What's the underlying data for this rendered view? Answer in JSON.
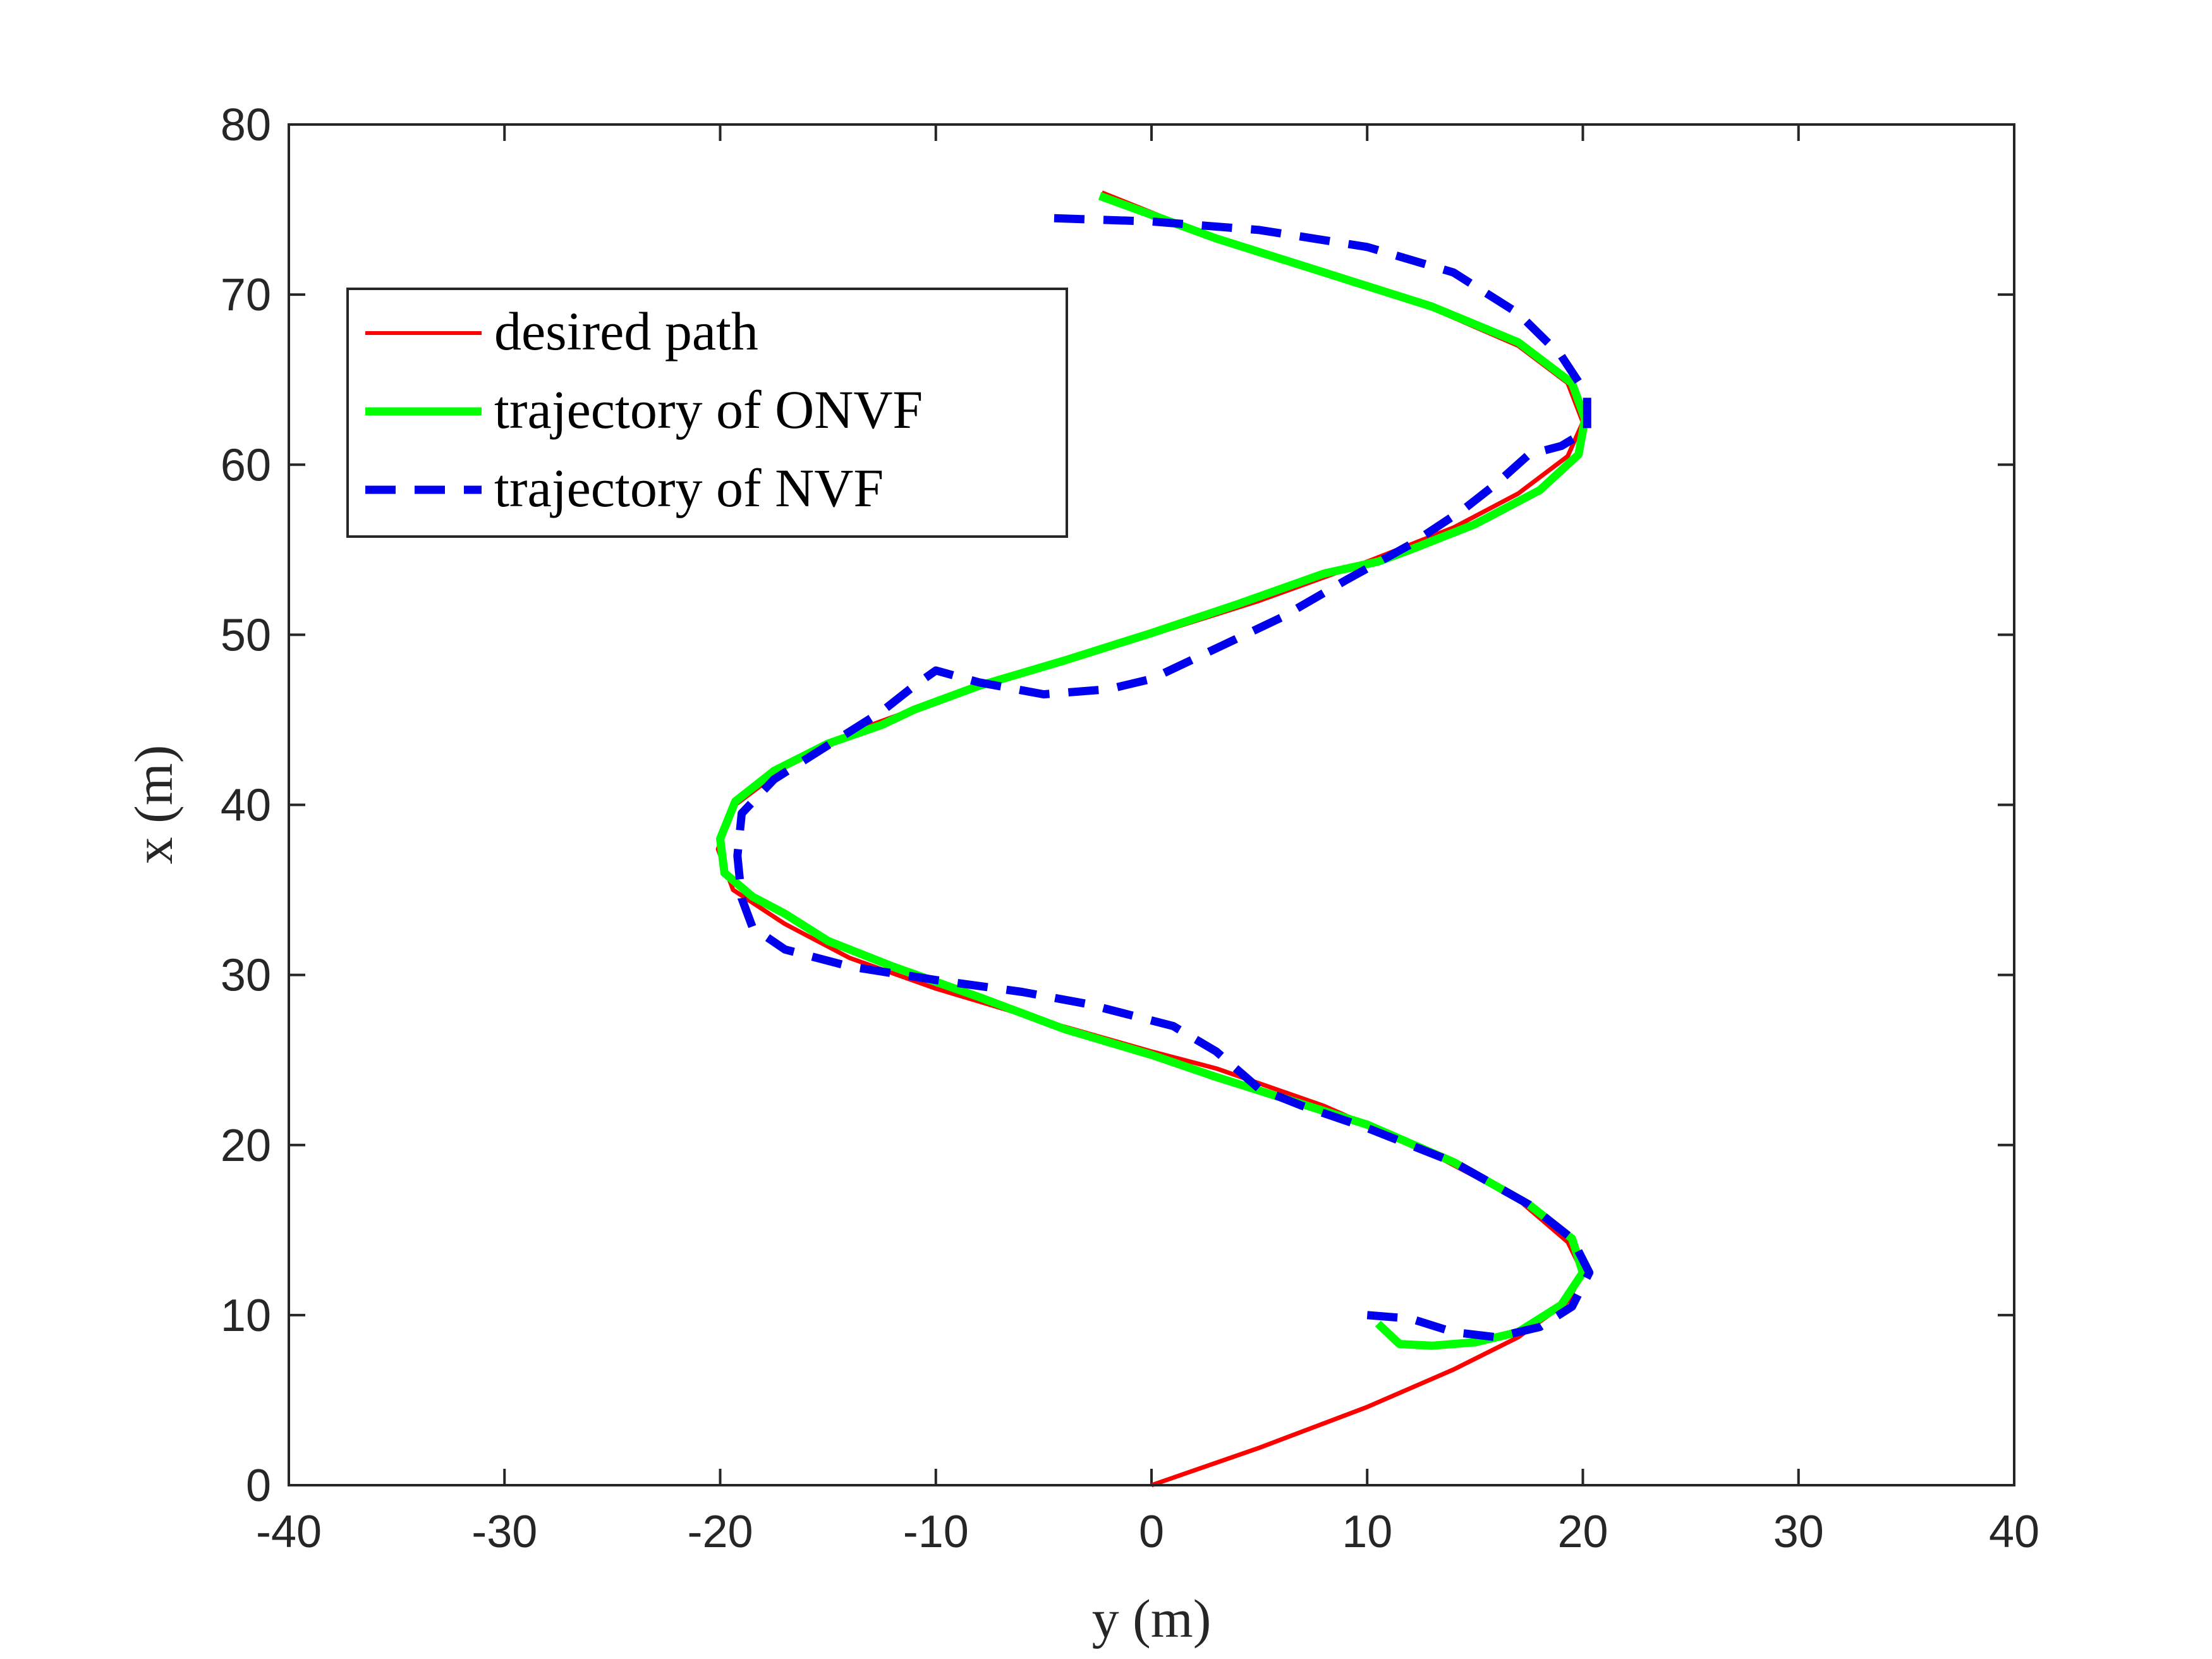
{
  "chart_data": {
    "type": "line",
    "xlabel": "y (m)",
    "ylabel": "x (m)",
    "xlim": [
      -40,
      40
    ],
    "ylim": [
      0,
      80
    ],
    "xticks": [
      -40,
      -30,
      -20,
      -10,
      0,
      10,
      20,
      30,
      40
    ],
    "yticks": [
      0,
      10,
      20,
      30,
      40,
      50,
      60,
      70,
      80
    ],
    "xtick_labels": [
      "-40",
      "-30",
      "-20",
      "-10",
      "0",
      "10",
      "20",
      "30",
      "40"
    ],
    "ytick_labels": [
      "0",
      "10",
      "20",
      "30",
      "40",
      "50",
      "60",
      "70",
      "80"
    ],
    "grid": false,
    "legend_position": "top-left",
    "series": [
      {
        "name": "desired path",
        "color": "#ff0000",
        "style": "solid",
        "points": [
          [
            0,
            0
          ],
          [
            5,
            2.2
          ],
          [
            10,
            4.6
          ],
          [
            14,
            6.8
          ],
          [
            17,
            8.7
          ],
          [
            19.3,
            10.8
          ],
          [
            20,
            12.5
          ],
          [
            19.3,
            14.3
          ],
          [
            17,
            16.8
          ],
          [
            13,
            19.5
          ],
          [
            8,
            22.3
          ],
          [
            3,
            24.5
          ],
          [
            0,
            25.5
          ],
          [
            -5,
            27.3
          ],
          [
            -10,
            29.2
          ],
          [
            -14,
            31
          ],
          [
            -17,
            33
          ],
          [
            -19.4,
            35
          ],
          [
            -20.1,
            37.4
          ],
          [
            -19.3,
            40
          ],
          [
            -17,
            42.2
          ],
          [
            -13,
            44.7
          ],
          [
            -8,
            47
          ],
          [
            -3,
            48.8
          ],
          [
            0,
            50
          ],
          [
            5,
            52
          ],
          [
            10,
            54.3
          ],
          [
            14,
            56.3
          ],
          [
            17,
            58.3
          ],
          [
            19.3,
            60.5
          ],
          [
            20,
            62.5
          ],
          [
            19.3,
            64.8
          ],
          [
            17,
            67
          ],
          [
            13,
            69.2
          ],
          [
            8,
            71.3
          ],
          [
            3,
            73.3
          ],
          [
            -2.3,
            76
          ]
        ]
      },
      {
        "name": "trajectory of ONVF",
        "color": "#00ff00",
        "style": "solid",
        "points": [
          [
            10.5,
            9.5
          ],
          [
            11.5,
            8.3
          ],
          [
            13,
            8.2
          ],
          [
            15,
            8.4
          ],
          [
            17,
            9
          ],
          [
            19,
            10.6
          ],
          [
            20,
            12.5
          ],
          [
            19.5,
            14.5
          ],
          [
            17.5,
            16.5
          ],
          [
            14,
            19
          ],
          [
            10,
            21.2
          ],
          [
            6,
            22.8
          ],
          [
            3,
            24
          ],
          [
            0,
            25.3
          ],
          [
            -4,
            26.8
          ],
          [
            -8,
            28.7
          ],
          [
            -12,
            30.5
          ],
          [
            -15,
            32
          ],
          [
            -17,
            33.6
          ],
          [
            -18.5,
            34.6
          ],
          [
            -19.8,
            36
          ],
          [
            -20,
            38
          ],
          [
            -19.3,
            40.2
          ],
          [
            -17.5,
            42
          ],
          [
            -15,
            43.6
          ],
          [
            -12.5,
            44.7
          ],
          [
            -11,
            45.6
          ],
          [
            -8,
            47
          ],
          [
            -4,
            48.5
          ],
          [
            0,
            50.1
          ],
          [
            4,
            51.8
          ],
          [
            8,
            53.6
          ],
          [
            10.5,
            54.3
          ],
          [
            12,
            55
          ],
          [
            15,
            56.5
          ],
          [
            18,
            58.5
          ],
          [
            19.8,
            60.6
          ],
          [
            20.1,
            62.7
          ],
          [
            19.5,
            64.8
          ],
          [
            17,
            67.2
          ],
          [
            13,
            69.3
          ],
          [
            8,
            71.3
          ],
          [
            3,
            73.3
          ],
          [
            -2.4,
            75.8
          ]
        ]
      },
      {
        "name": "trajectory of NVF",
        "color": "#0000ee",
        "style": "dashed",
        "points": [
          [
            10,
            10
          ],
          [
            12,
            9.8
          ],
          [
            14,
            9
          ],
          [
            16,
            8.7
          ],
          [
            18,
            9.3
          ],
          [
            19.5,
            10.5
          ],
          [
            20.3,
            12.5
          ],
          [
            19.5,
            14.5
          ],
          [
            17.5,
            16.5
          ],
          [
            14,
            19
          ],
          [
            10,
            21
          ],
          [
            7,
            22.3
          ],
          [
            5,
            23.3
          ],
          [
            3,
            25.5
          ],
          [
            1,
            27
          ],
          [
            -3,
            28.3
          ],
          [
            -6,
            29
          ],
          [
            -10,
            29.7
          ],
          [
            -14,
            30.5
          ],
          [
            -17,
            31.5
          ],
          [
            -18.5,
            32.8
          ],
          [
            -19,
            34.5
          ],
          [
            -19.2,
            37
          ],
          [
            -19,
            39.5
          ],
          [
            -17.5,
            41.5
          ],
          [
            -15,
            43.5
          ],
          [
            -12.5,
            45.5
          ],
          [
            -11,
            47
          ],
          [
            -10,
            47.9
          ],
          [
            -8,
            47.2
          ],
          [
            -5,
            46.5
          ],
          [
            -2,
            46.8
          ],
          [
            0,
            47.4
          ],
          [
            3,
            49.2
          ],
          [
            6,
            51
          ],
          [
            9,
            53.2
          ],
          [
            12,
            55.3
          ],
          [
            14.5,
            57.4
          ],
          [
            16,
            58.9
          ],
          [
            17.5,
            60.6
          ],
          [
            19,
            61.1
          ],
          [
            20.2,
            62
          ],
          [
            20.2,
            64.1
          ],
          [
            19,
            66.4
          ],
          [
            17,
            68.9
          ],
          [
            14,
            71.3
          ],
          [
            10,
            72.8
          ],
          [
            5,
            73.8
          ],
          [
            0,
            74.3
          ],
          [
            -4.7,
            74.5
          ]
        ]
      }
    ]
  }
}
